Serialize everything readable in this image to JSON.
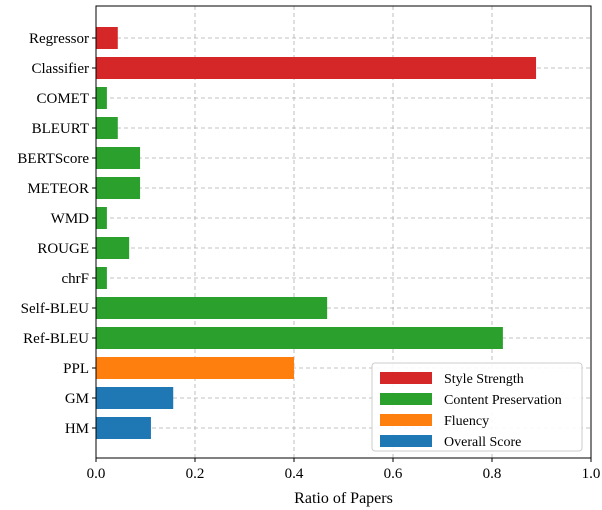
{
  "chart_data": {
    "type": "bar",
    "orientation": "horizontal",
    "title": "",
    "xlabel": "Ratio of Papers",
    "ylabel": "",
    "xlim": [
      0,
      1.0
    ],
    "xticks": [
      "0.0",
      "0.2",
      "0.4",
      "0.6",
      "0.8",
      "1.0"
    ],
    "grid": true,
    "legend_position": "bottom-right",
    "categories": [
      "Regressor",
      "Classifier",
      "COMET",
      "BLEURT",
      "BERTScore",
      "METEOR",
      "WMD",
      "ROUGE",
      "chrF",
      "Self-BLEU",
      "Ref-BLEU",
      "PPL",
      "GM",
      "HM"
    ],
    "values": [
      0.044,
      0.889,
      0.022,
      0.044,
      0.089,
      0.089,
      0.022,
      0.067,
      0.022,
      0.467,
      0.822,
      0.4,
      0.156,
      0.111
    ],
    "groups": [
      "Style Strength",
      "Style Strength",
      "Content Preservation",
      "Content Preservation",
      "Content Preservation",
      "Content Preservation",
      "Content Preservation",
      "Content Preservation",
      "Content Preservation",
      "Content Preservation",
      "Content Preservation",
      "Fluency",
      "Overall Score",
      "Overall Score"
    ],
    "legend": [
      {
        "label": "Style Strength",
        "color": "#d62728"
      },
      {
        "label": "Content Preservation",
        "color": "#2ca02c"
      },
      {
        "label": "Fluency",
        "color": "#ff7f0e"
      },
      {
        "label": "Overall Score",
        "color": "#1f77b4"
      }
    ]
  }
}
